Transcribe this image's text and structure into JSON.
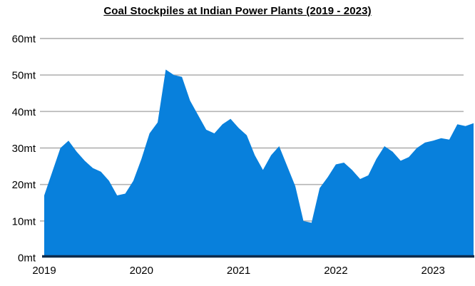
{
  "title": "Coal Stockpiles at Indian Power Plants (2019 - 2023)",
  "chart_data": {
    "type": "area",
    "title": "Coal Stockpiles at Indian Power Plants (2019 - 2023)",
    "unit": "mt",
    "frequency": "monthly",
    "x_start": "2019-01",
    "x_end": "2023-06",
    "x_tick_labels": [
      "2019",
      "2020",
      "2021",
      "2022",
      "2023"
    ],
    "y_tick_labels": [
      "60mt",
      "50mt",
      "40mt",
      "30mt",
      "20mt",
      "10mt",
      "0mt"
    ],
    "ylim": [
      0,
      60
    ],
    "grid": true,
    "legend": "none",
    "area_color": "#0880dc",
    "axis_line_color": "#0d2b4b",
    "gridline_color": "#b4b4b4",
    "series": [
      {
        "name": "Coal stockpiles (mt)",
        "values": [
          17,
          23.5,
          30,
          32,
          29,
          26.5,
          24.5,
          23.5,
          21,
          17,
          17.5,
          21,
          27,
          34,
          37,
          51.5,
          50,
          49.5,
          43,
          39,
          35,
          34,
          36.5,
          38,
          35.5,
          33.5,
          28,
          24,
          28,
          30.5,
          25,
          19.5,
          10,
          9.5,
          19,
          22,
          25.5,
          26,
          24,
          21.5,
          22.5,
          27,
          30.5,
          29,
          26.5,
          27.5,
          30,
          31.5,
          32,
          32.7,
          32.3,
          36.5,
          36,
          36.8
        ]
      }
    ]
  }
}
